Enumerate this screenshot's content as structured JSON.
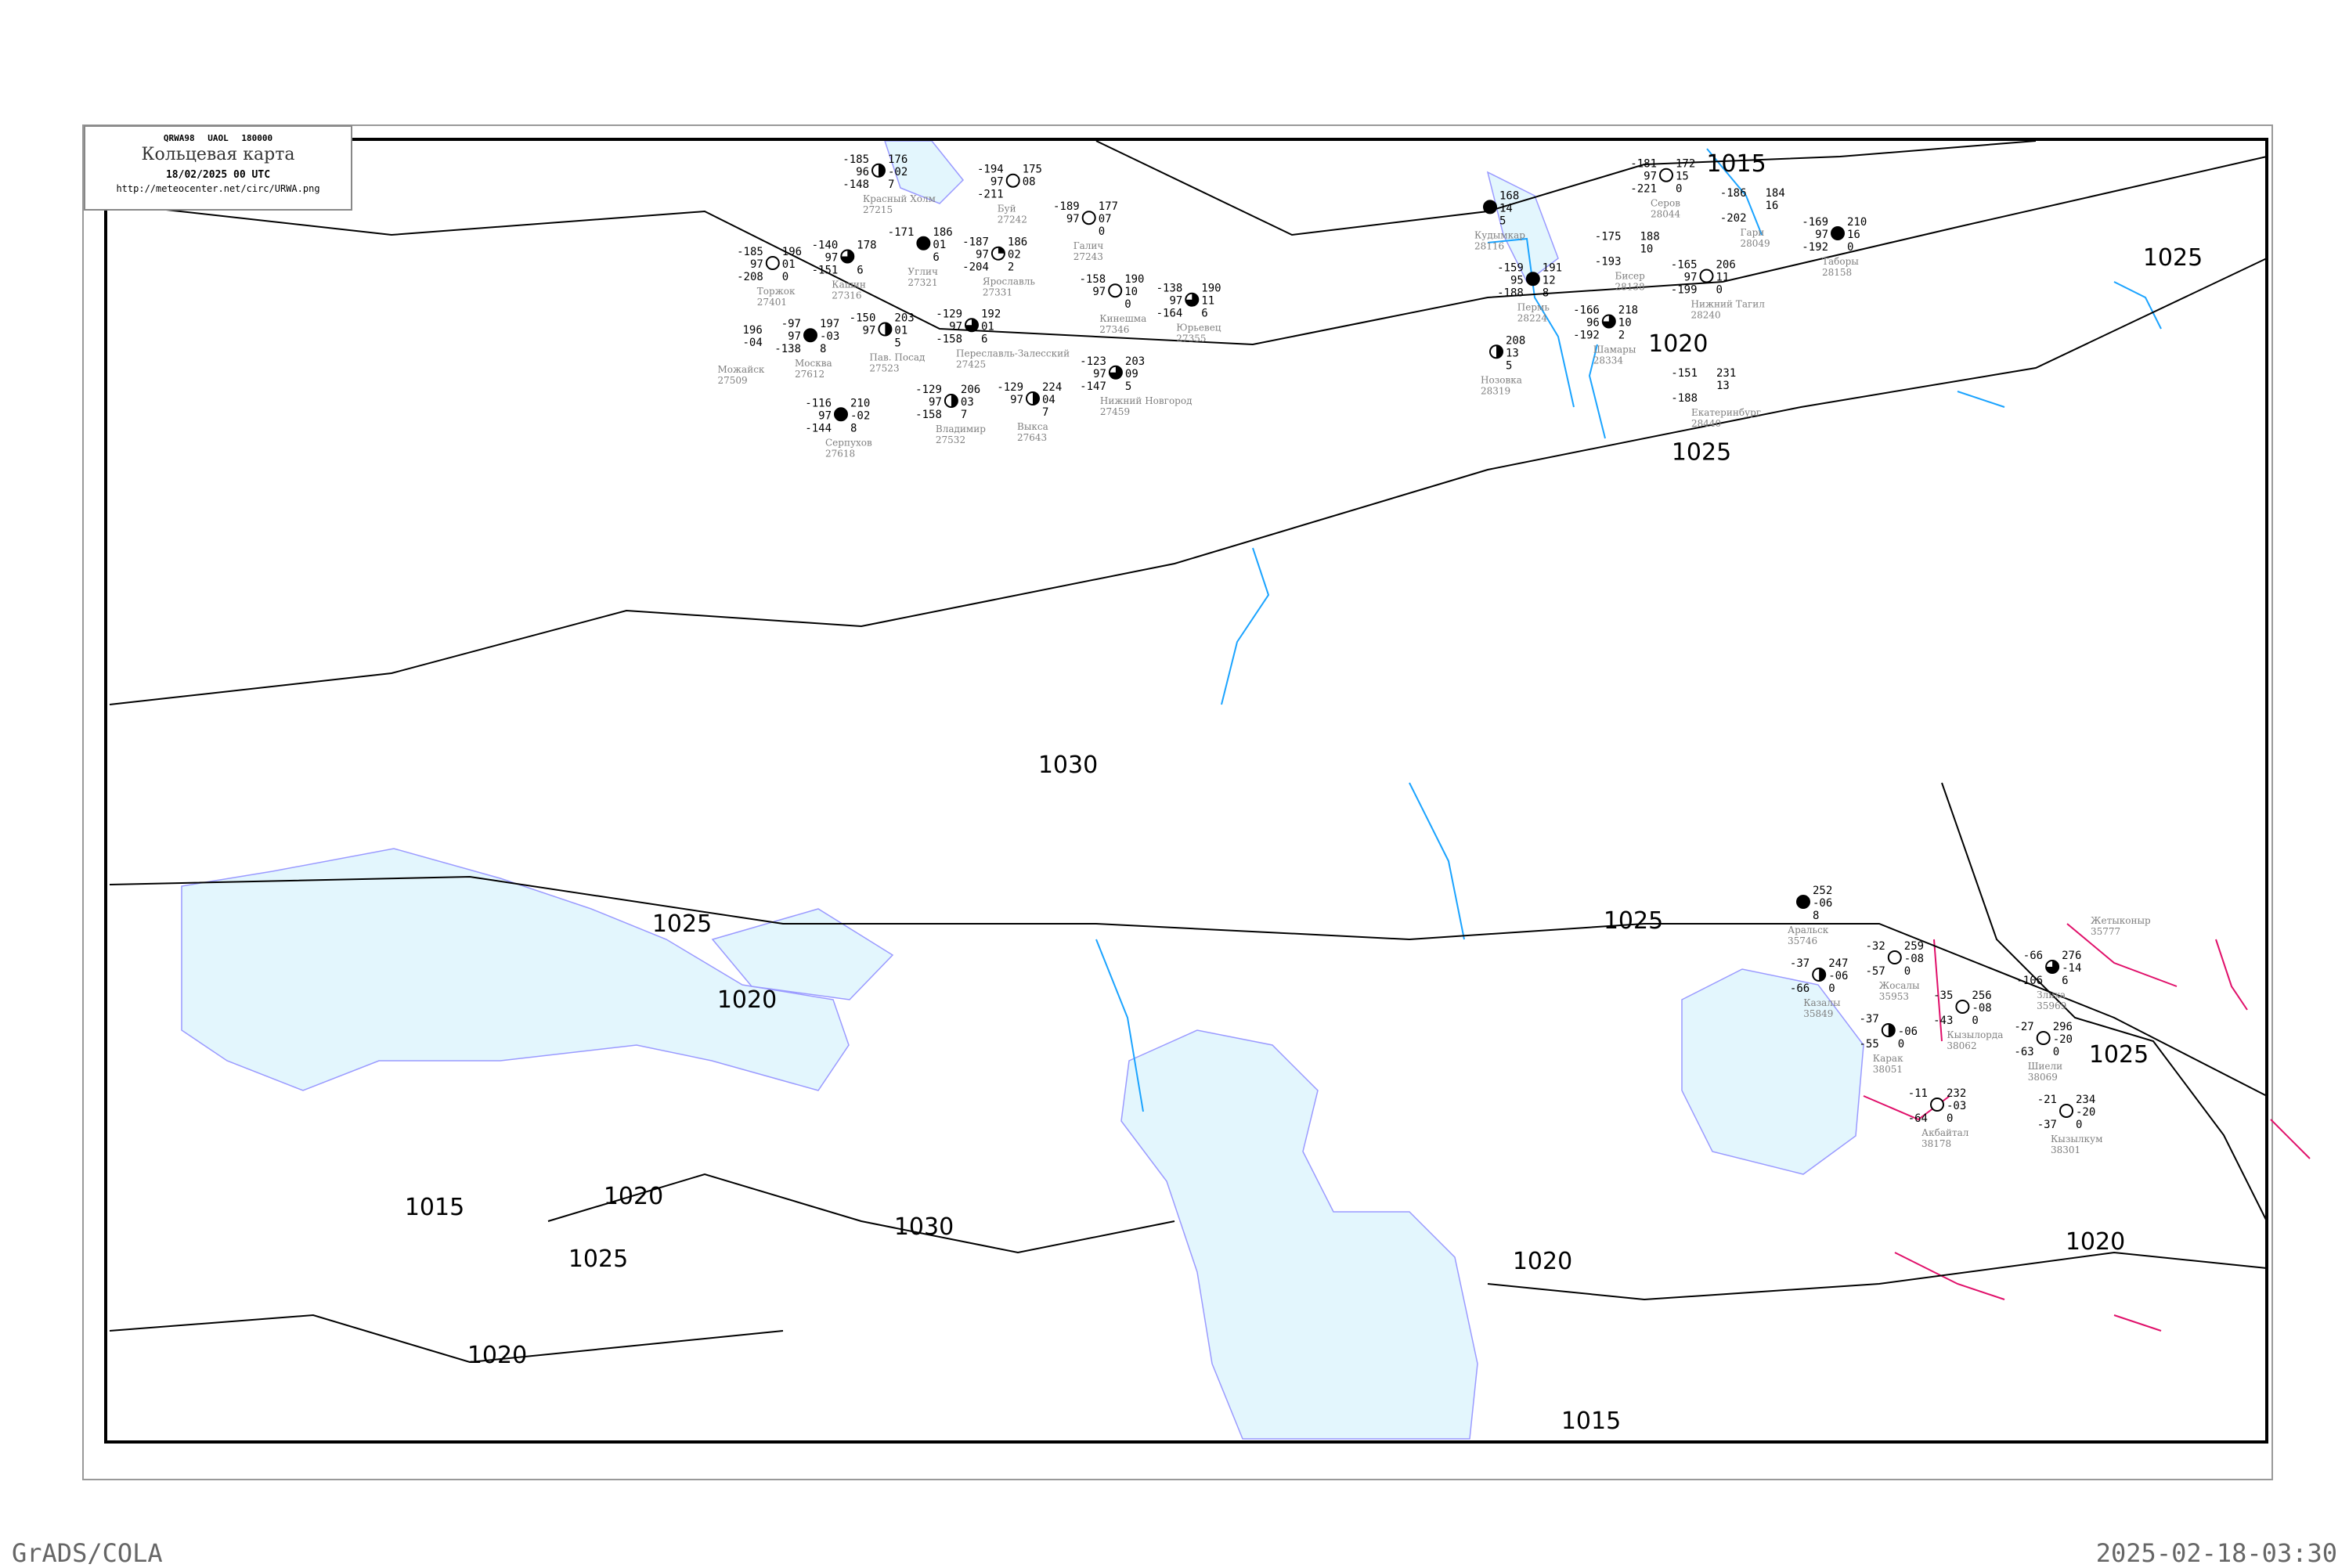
{
  "header": {
    "code": "QRWA98 UAOL 180000",
    "title": "Кольцевая карта",
    "datetime": "18/02/2025 00 UTC",
    "url": "http://meteocenter.net/circ/URWA.png"
  },
  "footer": {
    "left": "GrADS/COLA",
    "right": "2025-02-18-03:30"
  },
  "colors": {
    "isobar": "#000000",
    "water": "#e3f6fd",
    "coast": "#9a9aff",
    "river": "#1aa3ff",
    "front": "#e0106a",
    "station_name": "#808080",
    "precip_marker": "#3399ff"
  },
  "isobars": [
    "1015",
    "1020",
    "1025",
    "1025",
    "1030",
    "1025",
    "1025",
    "1020",
    "1020",
    "1015",
    "1025",
    "1030",
    "1020",
    "1020",
    "1020",
    "1025",
    "1015"
  ],
  "stations": [
    {
      "id": "28044",
      "name": "Серов",
      "t": "-181",
      "v": "97",
      "td": "-221",
      "p": "172",
      "dp": "15",
      "r": "0",
      "cloud": "clear"
    },
    {
      "id": "28049",
      "name": "Гари",
      "t": "-186",
      "v": "",
      "td": "-202",
      "p": "184",
      "dp": "16",
      "r": "",
      "cloud": "none"
    },
    {
      "id": "28158",
      "name": "Таборы",
      "t": "-169",
      "v": "97",
      "td": "-192",
      "p": "210",
      "dp": "16",
      "r": "0",
      "cloud": "overcast"
    },
    {
      "id": "28116",
      "name": "Кудымкар",
      "t": "",
      "v": "",
      "td": "",
      "p": "168",
      "dp": "14",
      "r": "5",
      "cloud": "overcast"
    },
    {
      "id": "28224",
      "name": "Пермь",
      "t": "-159",
      "v": "95",
      "td": "-188",
      "p": "191",
      "dp": "12",
      "r": "8",
      "cloud": "overcast"
    },
    {
      "id": "28138",
      "name": "Бисер",
      "t": "-175",
      "v": "",
      "td": "-193",
      "p": "188",
      "dp": "10",
      "r": "",
      "cloud": "none"
    },
    {
      "id": "28240",
      "name": "Нижний Тагил",
      "t": "-165",
      "v": "97",
      "td": "-199",
      "p": "206",
      "dp": "11",
      "r": "0",
      "cloud": "clear"
    },
    {
      "id": "28334",
      "name": "Шамары",
      "t": "-166",
      "v": "96",
      "td": "-192",
      "p": "218",
      "dp": "10",
      "r": "2",
      "cloud": "three-quarter"
    },
    {
      "id": "28319",
      "name": "Нозовка",
      "t": "",
      "v": "",
      "td": "",
      "p": "208",
      "dp": "13",
      "r": "5",
      "cloud": "half"
    },
    {
      "id": "28440",
      "name": "Екатеринбург",
      "t": "-151",
      "v": "",
      "td": "-188",
      "p": "231",
      "dp": "13",
      "r": "",
      "cloud": "none"
    },
    {
      "id": "27215",
      "name": "Красный Холм",
      "t": "-185",
      "v": "96",
      "td": "-148",
      "p": "176",
      "dp": "-02",
      "r": "7",
      "cloud": "half"
    },
    {
      "id": "27316",
      "name": "Кашин",
      "t": "-140",
      "v": "97",
      "td": "-151",
      "p": "178",
      "dp": "",
      "r": "6",
      "cloud": "three-quarter"
    },
    {
      "id": "27321",
      "name": "Углич",
      "t": "-171",
      "v": "",
      "td": "",
      "p": "186",
      "dp": "01",
      "r": "6",
      "cloud": "overcast"
    },
    {
      "id": "27331",
      "name": "Ярославль",
      "t": "-187",
      "v": "97",
      "td": "-204",
      "p": "186",
      "dp": "02",
      "r": "2",
      "cloud": "quarter"
    },
    {
      "id": "27401",
      "name": "Торжок",
      "t": "-185",
      "v": "97",
      "td": "-208",
      "p": "196",
      "dp": "01",
      "r": "0",
      "cloud": "clear"
    },
    {
      "id": "27242",
      "name": "Буй",
      "t": "-194",
      "v": "97",
      "td": "-211",
      "p": "175",
      "dp": "08",
      "r": "",
      "cloud": "clear"
    },
    {
      "id": "27243",
      "name": "Галич",
      "t": "-189",
      "v": "97",
      "td": "",
      "p": "177",
      "dp": "07",
      "r": "0",
      "cloud": "clear"
    },
    {
      "id": "27346",
      "name": "Кинешма",
      "t": "-158",
      "v": "97",
      "td": "",
      "p": "190",
      "dp": "10",
      "r": "0",
      "cloud": "clear"
    },
    {
      "id": "27355",
      "name": "Юрьевец",
      "t": "-138",
      "v": "97",
      "td": "-164",
      "p": "190",
      "dp": "11",
      "r": "6",
      "cloud": "three-quarter"
    },
    {
      "id": "27425",
      "name": "Переславль-Залесский",
      "t": "-129",
      "v": "97",
      "td": "-158",
      "p": "192",
      "dp": "01",
      "r": "6",
      "cloud": "three-quarter"
    },
    {
      "id": "27612",
      "name": "Москва",
      "t": "-97",
      "v": "97",
      "td": "-138",
      "p": "197",
      "dp": "-03",
      "r": "8",
      "cloud": "overcast"
    },
    {
      "id": "27523",
      "name": "Пав. Посад",
      "t": "-150",
      "v": "97",
      "td": "",
      "p": "203",
      "dp": "01",
      "r": "5",
      "cloud": "half"
    },
    {
      "id": "27532",
      "name": "Владимир",
      "t": "-129",
      "v": "97",
      "td": "-158",
      "p": "206",
      "dp": "03",
      "r": "7",
      "cloud": "half"
    },
    {
      "id": "27509",
      "name": "Можайск",
      "t": "",
      "v": "",
      "td": "",
      "p": "196",
      "dp": "-04",
      "r": "",
      "cloud": "none"
    },
    {
      "id": "27459",
      "name": "Нижний Новгород",
      "t": "-123",
      "v": "97",
      "td": "-147",
      "p": "203",
      "dp": "09",
      "r": "5",
      "cloud": "three-quarter"
    },
    {
      "id": "27618",
      "name": "Серпухов",
      "t": "-116",
      "v": "97",
      "td": "-144",
      "p": "210",
      "dp": "-02",
      "r": "8",
      "cloud": "overcast"
    },
    {
      "id": "27643",
      "name": "Выкса",
      "t": "-129",
      "v": "97",
      "td": "",
      "p": "224",
      "dp": "04",
      "r": "7",
      "cloud": "half"
    },
    {
      "id": "35746",
      "name": "Аральск",
      "t": "",
      "v": "",
      "td": "",
      "p": "252",
      "dp": "-06",
      "r": "8",
      "cloud": "overcast"
    },
    {
      "id": "35849",
      "name": "Казалы",
      "t": "-37",
      "v": "",
      "td": "-66",
      "p": "247",
      "dp": "-06",
      "r": "0",
      "cloud": "half"
    },
    {
      "id": "35953",
      "name": "Жосалы",
      "t": "-32",
      "v": "",
      "td": "-57",
      "p": "259",
      "dp": "-08",
      "r": "0",
      "cloud": "clear"
    },
    {
      "id": "38051",
      "name": "Карак",
      "t": "-37",
      "v": "",
      "td": "-55",
      "p": "",
      "dp": "-06",
      "r": "0",
      "cloud": "half"
    },
    {
      "id": "38062",
      "name": "Кызылорда",
      "t": "-35",
      "v": "",
      "td": "-43",
      "p": "256",
      "dp": "-08",
      "r": "0",
      "cloud": "clear"
    },
    {
      "id": "35969",
      "name": "Злиха",
      "t": "-66",
      "v": "",
      "td": "-106",
      "p": "276",
      "dp": "-14",
      "r": "6",
      "cloud": "three-quarter"
    },
    {
      "id": "38069",
      "name": "Шиели",
      "t": "-27",
      "v": "",
      "td": "-63",
      "p": "296",
      "dp": "-20",
      "r": "0",
      "cloud": "clear"
    },
    {
      "id": "38178",
      "name": "Акбайтал",
      "t": "-11",
      "v": "",
      "td": "-64",
      "p": "232",
      "dp": "-03",
      "r": "0",
      "cloud": "clear"
    },
    {
      "id": "38301",
      "name": "Кызылкум",
      "t": "-21",
      "v": "",
      "td": "-37",
      "p": "234",
      "dp": "-20",
      "r": "0",
      "cloud": "clear"
    },
    {
      "id": "35777",
      "name": "Жетыконыр",
      "t": "",
      "v": "",
      "td": "",
      "p": "",
      "dp": "",
      "r": "",
      "cloud": "none"
    }
  ]
}
